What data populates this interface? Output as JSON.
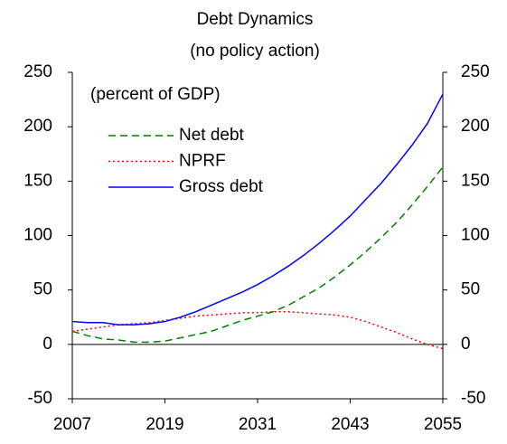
{
  "chart_data": {
    "type": "line",
    "title": "Debt Dynamics",
    "subtitle": "(no policy action)",
    "annotation": "(percent of GDP)",
    "x": [
      2007,
      2009,
      2011,
      2013,
      2015,
      2017,
      2019,
      2021,
      2023,
      2025,
      2027,
      2029,
      2031,
      2033,
      2035,
      2037,
      2039,
      2041,
      2043,
      2045,
      2047,
      2049,
      2051,
      2053,
      2055
    ],
    "series": [
      {
        "name": "Net debt",
        "color": "#008000",
        "dash": "dashed",
        "values": [
          12,
          8,
          5,
          4,
          2,
          2,
          3,
          6,
          9,
          12,
          17,
          22,
          26,
          30,
          36,
          44,
          52,
          62,
          73,
          85,
          98,
          112,
          128,
          145,
          163
        ]
      },
      {
        "name": "NPRF",
        "color": "#ff0000",
        "dash": "dotted",
        "values": [
          12,
          14,
          16,
          18,
          19,
          20,
          22,
          24,
          26,
          27,
          28,
          29,
          29,
          30,
          30,
          29,
          28,
          27,
          25,
          21,
          16,
          11,
          5,
          0,
          -4
        ]
      },
      {
        "name": "Gross debt",
        "color": "#0000ff",
        "dash": "solid",
        "values": [
          21,
          20,
          20,
          18,
          18,
          19,
          21,
          25,
          30,
          36,
          42,
          48,
          55,
          63,
          72,
          82,
          93,
          105,
          118,
          133,
          148,
          165,
          183,
          203,
          230
        ]
      }
    ],
    "xlim": [
      2007,
      2055
    ],
    "xticks": [
      2007,
      2019,
      2031,
      2043,
      2055
    ],
    "ylim": [
      -50,
      250
    ],
    "yticks": [
      -50,
      0,
      50,
      100,
      150,
      200,
      250
    ],
    "y2lim": [
      -50,
      250
    ],
    "y2ticks": [
      -50,
      0,
      50,
      100,
      150,
      200,
      250
    ],
    "legend": "upper-left"
  }
}
